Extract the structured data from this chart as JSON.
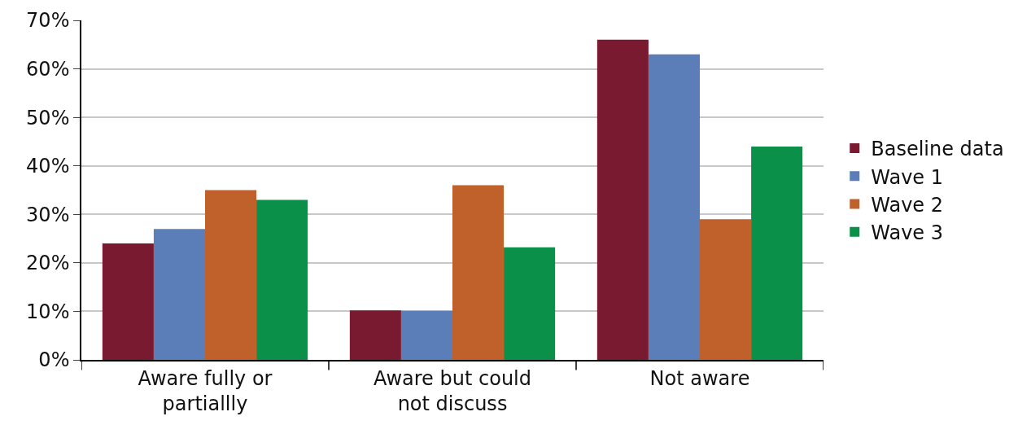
{
  "chart_data": {
    "type": "bar",
    "categories": [
      "Aware fully or\npartiallly",
      "Aware but could\nnot discuss",
      "Not aware"
    ],
    "series": [
      {
        "name": "Baseline data",
        "color": "#7a1a30",
        "values": [
          24,
          10.2,
          66
        ]
      },
      {
        "name": "Wave 1",
        "color": "#5b7db8",
        "values": [
          27,
          10.1,
          63
        ]
      },
      {
        "name": "Wave 2",
        "color": "#c0602a",
        "values": [
          35,
          36,
          29
        ]
      },
      {
        "name": "Wave 3",
        "color": "#0a9048",
        "values": [
          33,
          23.2,
          44
        ]
      }
    ],
    "ylim": [
      0,
      70
    ],
    "yticks": [
      {
        "value": 0,
        "label": "0%"
      },
      {
        "value": 10,
        "label": "10%"
      },
      {
        "value": 20,
        "label": "20%"
      },
      {
        "value": 30,
        "label": "30%"
      },
      {
        "value": 40,
        "label": "40%"
      },
      {
        "value": 50,
        "label": "50%"
      },
      {
        "value": 60,
        "label": "60%"
      },
      {
        "value": 70,
        "label": "70%"
      }
    ],
    "grid": "y",
    "legend": "right"
  }
}
